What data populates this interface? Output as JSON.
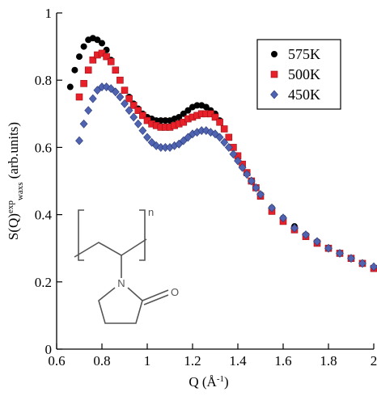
{
  "chart_data": {
    "type": "scatter",
    "xlabel": "Q (Å⁻¹)",
    "ylabel": "S(Q)exp waxs (arb.units)",
    "xlim": [
      0.6,
      2.0
    ],
    "ylim": [
      0,
      1.0
    ],
    "x_ticks": [
      "0.6",
      "0.8",
      "1",
      "1.2",
      "1.4",
      "1.6",
      "1.8",
      "2"
    ],
    "y_ticks": [
      "0",
      "0.2",
      "0.4",
      "0.6",
      "0.8",
      "1"
    ],
    "grid": false,
    "legend_position": "top-right",
    "series": [
      {
        "name": "575K",
        "marker": "circle",
        "color": "#000000",
        "x": [
          0.66,
          0.68,
          0.7,
          0.72,
          0.74,
          0.76,
          0.78,
          0.8,
          0.82,
          0.84,
          0.86,
          0.88,
          0.9,
          0.92,
          0.94,
          0.96,
          0.98,
          1.0,
          1.02,
          1.04,
          1.06,
          1.08,
          1.1,
          1.12,
          1.14,
          1.16,
          1.18,
          1.2,
          1.22,
          1.24,
          1.26,
          1.28,
          1.3,
          1.32,
          1.34,
          1.36,
          1.38,
          1.4,
          1.42,
          1.44,
          1.46,
          1.48,
          1.5,
          1.55,
          1.6,
          1.65,
          1.7,
          1.75,
          1.8,
          1.85,
          1.9,
          1.95,
          2.0
        ],
        "y": [
          0.78,
          0.83,
          0.87,
          0.9,
          0.92,
          0.925,
          0.92,
          0.91,
          0.89,
          0.86,
          0.83,
          0.8,
          0.77,
          0.75,
          0.73,
          0.715,
          0.7,
          0.69,
          0.685,
          0.68,
          0.68,
          0.68,
          0.68,
          0.685,
          0.69,
          0.7,
          0.71,
          0.72,
          0.725,
          0.725,
          0.72,
          0.71,
          0.7,
          0.68,
          0.655,
          0.63,
          0.6,
          0.575,
          0.55,
          0.525,
          0.5,
          0.48,
          0.46,
          0.42,
          0.39,
          0.365,
          0.34,
          0.32,
          0.3,
          0.285,
          0.27,
          0.255,
          0.24
        ]
      },
      {
        "name": "500K",
        "marker": "square",
        "color": "#e8202a",
        "x": [
          0.7,
          0.72,
          0.74,
          0.76,
          0.78,
          0.8,
          0.82,
          0.84,
          0.86,
          0.88,
          0.9,
          0.92,
          0.94,
          0.96,
          0.98,
          1.0,
          1.02,
          1.04,
          1.06,
          1.08,
          1.1,
          1.12,
          1.14,
          1.16,
          1.18,
          1.2,
          1.22,
          1.24,
          1.26,
          1.28,
          1.3,
          1.32,
          1.34,
          1.36,
          1.38,
          1.4,
          1.42,
          1.44,
          1.46,
          1.48,
          1.5,
          1.55,
          1.6,
          1.65,
          1.7,
          1.75,
          1.8,
          1.85,
          1.9,
          1.95,
          2.0
        ],
        "y": [
          0.75,
          0.79,
          0.83,
          0.86,
          0.875,
          0.88,
          0.87,
          0.855,
          0.83,
          0.8,
          0.77,
          0.745,
          0.725,
          0.71,
          0.695,
          0.68,
          0.67,
          0.665,
          0.66,
          0.66,
          0.66,
          0.665,
          0.67,
          0.675,
          0.685,
          0.69,
          0.695,
          0.7,
          0.7,
          0.7,
          0.69,
          0.675,
          0.655,
          0.63,
          0.6,
          0.575,
          0.55,
          0.525,
          0.5,
          0.48,
          0.455,
          0.41,
          0.38,
          0.355,
          0.335,
          0.315,
          0.3,
          0.285,
          0.27,
          0.255,
          0.24
        ]
      },
      {
        "name": "450K",
        "marker": "diamond",
        "color": "#4f63b0",
        "x": [
          0.7,
          0.72,
          0.74,
          0.76,
          0.78,
          0.8,
          0.82,
          0.84,
          0.86,
          0.88,
          0.9,
          0.92,
          0.94,
          0.96,
          0.98,
          1.0,
          1.02,
          1.04,
          1.06,
          1.08,
          1.1,
          1.12,
          1.14,
          1.16,
          1.18,
          1.2,
          1.22,
          1.24,
          1.26,
          1.28,
          1.3,
          1.32,
          1.34,
          1.36,
          1.38,
          1.4,
          1.42,
          1.44,
          1.46,
          1.48,
          1.5,
          1.55,
          1.6,
          1.65,
          1.7,
          1.75,
          1.8,
          1.85,
          1.9,
          1.95,
          2.0
        ],
        "y": [
          0.62,
          0.67,
          0.71,
          0.745,
          0.77,
          0.78,
          0.78,
          0.775,
          0.765,
          0.75,
          0.73,
          0.71,
          0.69,
          0.67,
          0.65,
          0.63,
          0.615,
          0.605,
          0.6,
          0.6,
          0.6,
          0.605,
          0.61,
          0.62,
          0.63,
          0.64,
          0.645,
          0.65,
          0.65,
          0.645,
          0.64,
          0.63,
          0.615,
          0.6,
          0.58,
          0.56,
          0.54,
          0.52,
          0.5,
          0.48,
          0.46,
          0.42,
          0.39,
          0.36,
          0.34,
          0.32,
          0.3,
          0.285,
          0.27,
          0.255,
          0.245
        ]
      }
    ],
    "inset": {
      "name": "polymer-repeat-unit",
      "repeat_label": "n",
      "atom_n": "N",
      "atom_o": "O"
    }
  }
}
